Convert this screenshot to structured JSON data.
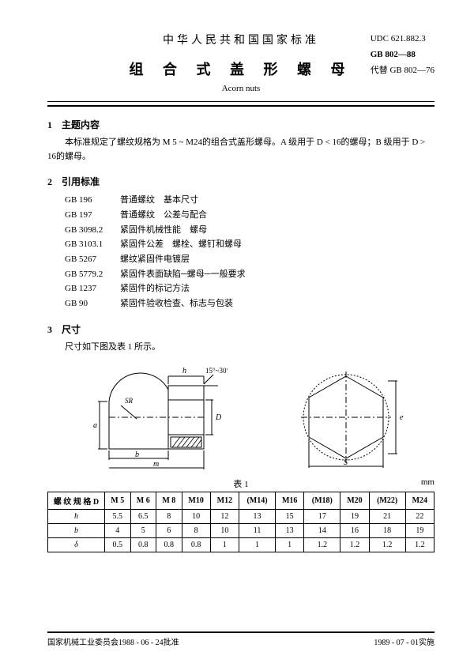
{
  "header": {
    "country_title": "中华人民共和国国家标准",
    "main_title": "组 合 式 盖 形 螺 母",
    "en_title": "Acorn nuts",
    "udc": "UDC 621.882.3",
    "std_code": "GB 802—88",
    "replaces": "代替 GB 802—76"
  },
  "s1": {
    "head": "1　主题内容",
    "para": "本标准规定了螺纹规格为 M 5 ~ M24的组合式盖形螺母。A 级用于 D < 16的螺母；B 级用于 D > 16的螺母。"
  },
  "s2": {
    "head": "2　引用标准",
    "refs": [
      {
        "code": "GB 196",
        "title": "普通螺纹　基本尺寸"
      },
      {
        "code": "GB 197",
        "title": "普通螺纹　公差与配合"
      },
      {
        "code": "GB 3098.2",
        "title": "紧固件机械性能　螺母"
      },
      {
        "code": "GB 3103.1",
        "title": "紧固件公差　螺栓、螺钉和螺母"
      },
      {
        "code": "GB 5267",
        "title": "螺纹紧固件电镀层"
      },
      {
        "code": "GB 5779.2",
        "title": "紧固件表面缺陷─螺母─一般要求"
      },
      {
        "code": "GB 1237",
        "title": "紧固件的标记方法"
      },
      {
        "code": "GB 90",
        "title": "紧固件验收检查、标志与包装"
      }
    ]
  },
  "s3": {
    "head": "3　尺寸",
    "para": "尺寸如下图及表 1 所示。"
  },
  "figure": {
    "angle_label": "15°~30°",
    "dim_h": "h",
    "dim_SR": "SR",
    "dim_D": "D",
    "dim_a": "a",
    "dim_b": "b",
    "dim_m": "m",
    "dim_S": "S",
    "dim_e": "e",
    "stroke": "#000000",
    "hatch": "#000000"
  },
  "table": {
    "caption": "表 1",
    "unit": "mm",
    "header_label": "螺 纹 规 格 D",
    "columns": [
      "M 5",
      "M 6",
      "M 8",
      "M10",
      "M12",
      "(M14)",
      "M16",
      "(M18)",
      "M20",
      "(M22)",
      "M24"
    ],
    "rows": [
      {
        "label": "h",
        "vals": [
          "5.5",
          "6.5",
          "8",
          "10",
          "12",
          "13",
          "15",
          "17",
          "19",
          "21",
          "22"
        ]
      },
      {
        "label": "b",
        "vals": [
          "4",
          "5",
          "6",
          "8",
          "10",
          "11",
          "13",
          "14",
          "16",
          "18",
          "19"
        ]
      },
      {
        "label": "δ",
        "vals": [
          "0.5",
          "0.8",
          "0.8",
          "0.8",
          "1",
          "1",
          "1",
          "1.2",
          "1.2",
          "1.2",
          "1.2"
        ]
      }
    ]
  },
  "footer": {
    "left": "国家机械工业委员会1988 - 06 - 24批准",
    "right": "1989 - 07 - 01实施"
  }
}
